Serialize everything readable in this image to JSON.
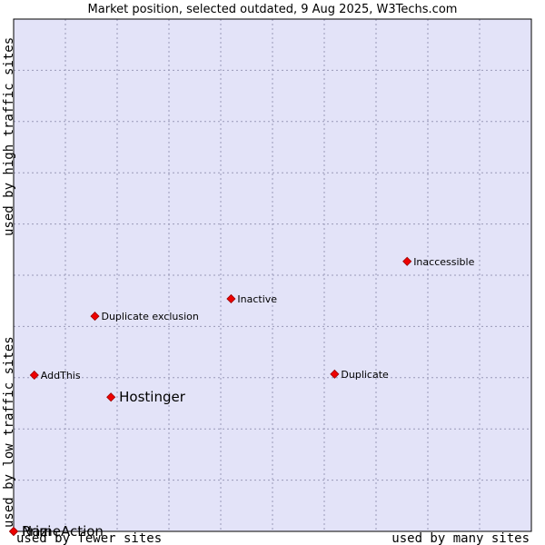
{
  "chart_data": {
    "type": "scatter",
    "title": "Market position, selected outdated, 9 Aug 2025, W3Techs.com",
    "x_axis": {
      "low_label": "used by fewer sites",
      "high_label": "used by many sites",
      "range": [
        0,
        10
      ]
    },
    "y_axis": {
      "low_label": "used by low traffic sites",
      "high_label": "used by high traffic sites",
      "range": [
        0,
        10
      ]
    },
    "grid": true,
    "colors": {
      "plot_bg": "#e3e3f8",
      "marker": "#ee0000",
      "marker_edge": "#990000"
    },
    "points": [
      {
        "label": "Inaccessible",
        "x": 7.6,
        "y": 5.27,
        "emphasis": false
      },
      {
        "label": "Inactive",
        "x": 4.2,
        "y": 4.54,
        "emphasis": false
      },
      {
        "label": "Duplicate exclusion",
        "x": 1.57,
        "y": 4.2,
        "emphasis": false
      },
      {
        "label": "AddThis",
        "x": 0.4,
        "y": 3.05,
        "emphasis": false
      },
      {
        "label": "Duplicate",
        "x": 6.2,
        "y": 3.07,
        "emphasis": false
      },
      {
        "label": "Hostinger",
        "x": 1.88,
        "y": 2.62,
        "emphasis": true
      },
      {
        "label": "PrimeAction",
        "x": 0.0,
        "y": 0.0,
        "emphasis": true
      },
      {
        "label": "Nazi",
        "x": 0.0,
        "y": 0.0,
        "emphasis": true
      }
    ]
  }
}
